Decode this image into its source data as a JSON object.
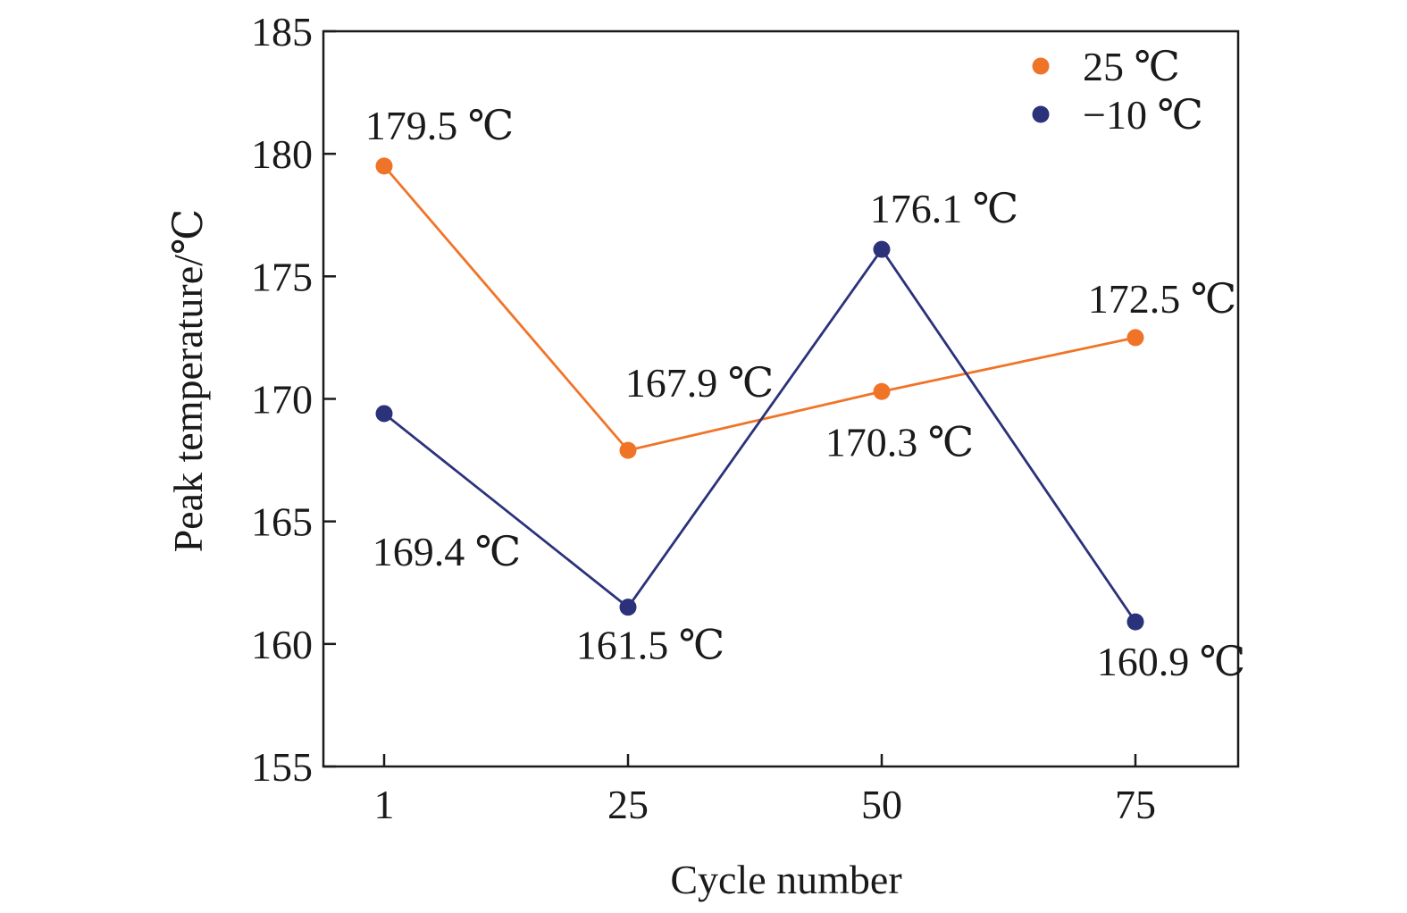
{
  "chart_data": {
    "type": "line",
    "title": "",
    "xlabel": "Cycle number",
    "ylabel": "Peak temperature/℃",
    "categories": [
      "1",
      "25",
      "50",
      "75"
    ],
    "ylim": [
      155,
      185
    ],
    "yticks": [
      "155",
      "160",
      "165",
      "170",
      "175",
      "180",
      "185"
    ],
    "grid": false,
    "legend_position": "top-right",
    "series": [
      {
        "name": "25 ℃",
        "color": "#f07428",
        "values": [
          179.5,
          167.9,
          170.3,
          172.5
        ],
        "labels": [
          "179.5 ℃",
          "167.9 ℃",
          "170.3 ℃",
          "172.5 ℃"
        ]
      },
      {
        "name": "−10 ℃",
        "color": "#2b327a",
        "values": [
          169.4,
          161.5,
          176.1,
          160.9
        ],
        "labels": [
          "169.4 ℃",
          "161.5 ℃",
          "176.1 ℃",
          "160.9 ℃"
        ]
      }
    ]
  }
}
